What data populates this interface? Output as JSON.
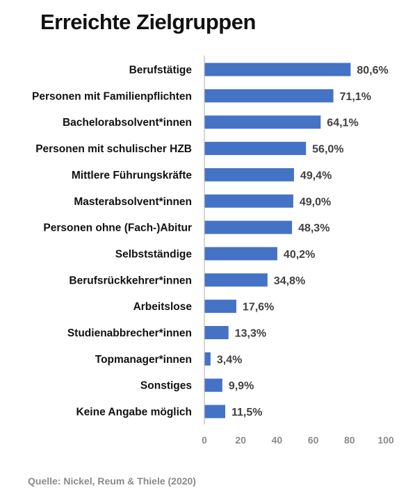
{
  "title": "Erreichte Zielgruppen",
  "source": "Quelle: Nickel, Reum & Thiele (2020)",
  "colors": {
    "bar": "#4472C4",
    "axis": "#BFBFBF"
  },
  "chart_data": {
    "type": "bar",
    "orientation": "horizontal",
    "title": "Erreichte Zielgruppen",
    "xlabel": "",
    "ylabel": "",
    "xlim": [
      0,
      100
    ],
    "ticks": [
      "0",
      "20",
      "40",
      "60",
      "80",
      "100"
    ],
    "tick_values": [
      0,
      20,
      40,
      60,
      80,
      100
    ],
    "grid": false,
    "categories": [
      "Berufstätige",
      "Personen mit Familienpflichten",
      "Bachelorabsolvent*innen",
      "Personen mit schulischer HZB",
      "Mittlere Führungskräfte",
      "Masterabsolvent*innen",
      "Personen ohne (Fach-)Abitur",
      "Selbstständige",
      "Berufsrückkehrer*innen",
      "Arbeitslose",
      "Studienabbrecher*innen",
      "Topmanager*innen",
      "Sonstiges",
      "Keine Angabe möglich"
    ],
    "values": [
      80.6,
      71.1,
      64.1,
      56.0,
      49.4,
      49.0,
      48.3,
      40.2,
      34.8,
      17.6,
      13.3,
      3.4,
      9.9,
      11.5
    ],
    "value_labels": [
      "80,6%",
      "71,1%",
      "64,1%",
      "56,0%",
      "49,4%",
      "49,0%",
      "48,3%",
      "40,2%",
      "34,8%",
      "17,6%",
      "13,3%",
      "3,4%",
      "9,9%",
      "11,5%"
    ]
  }
}
